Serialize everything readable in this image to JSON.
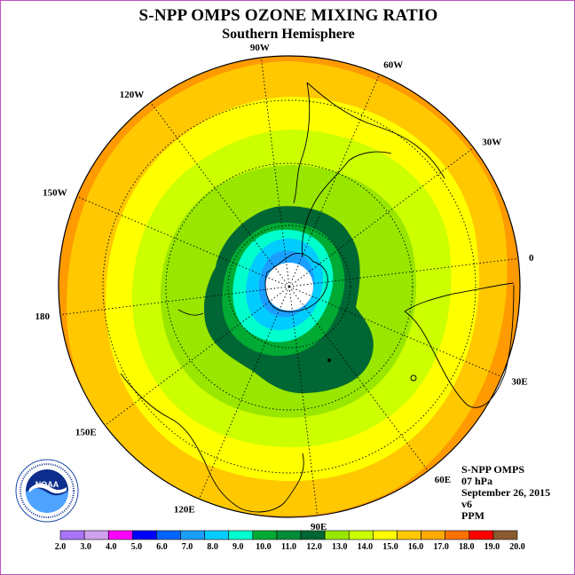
{
  "header": {
    "title": "S-NPP OMPS OZONE MIXING RATIO",
    "subtitle": "Southern Hemisphere"
  },
  "map": {
    "projection": "south-polar-stereographic",
    "longitude_labels": [
      {
        "text": "90W",
        "lon": -90
      },
      {
        "text": "60W",
        "lon": -60
      },
      {
        "text": "30W",
        "lon": -30
      },
      {
        "text": "0",
        "lon": 0
      },
      {
        "text": "30E",
        "lon": 30
      },
      {
        "text": "60E",
        "lon": 60
      },
      {
        "text": "90E",
        "lon": 90
      },
      {
        "text": "120E",
        "lon": 120
      },
      {
        "text": "150E",
        "lon": 150
      },
      {
        "text": "180",
        "lon": 180
      },
      {
        "text": "150W",
        "lon": -150
      },
      {
        "text": "120W",
        "lon": -120
      }
    ],
    "contour_colors_outer_to_inner": [
      "#ff9a00",
      "#ffc800",
      "#ffff00",
      "#ccff00",
      "#99e600",
      "#00aa33",
      "#006633",
      "#00ffcc",
      "#00ccff",
      "#1a9fff",
      "#ffffff"
    ]
  },
  "info": {
    "instrument": "S-NPP OMPS",
    "level": "07 hPa",
    "date": "September 26, 2015",
    "version": "v6",
    "units": "PPM"
  },
  "logo": {
    "text": "NOAA",
    "ring_text": "NATIONAL OCEANIC AND ATMOSPHERIC ADMINISTRATION · U.S. DEPARTMENT OF COMMERCE"
  },
  "colorbar": {
    "ticks": [
      "2.0",
      "3.0",
      "4.0",
      "5.0",
      "6.0",
      "7.0",
      "8.0",
      "9.0",
      "10.0",
      "11.0",
      "12.0",
      "13.0",
      "14.0",
      "15.0",
      "16.0",
      "17.0",
      "18.0",
      "19.0",
      "20.0"
    ],
    "colors": [
      "#a874f8",
      "#d0a0f0",
      "#ff00ff",
      "#0000ff",
      "#0066ff",
      "#1a9fff",
      "#00ccff",
      "#00ffcc",
      "#00aa33",
      "#008c3a",
      "#006633",
      "#99e600",
      "#ccff00",
      "#ffff00",
      "#ffc800",
      "#ffaa00",
      "#ff7200",
      "#ff0000",
      "#8a5a30"
    ]
  }
}
